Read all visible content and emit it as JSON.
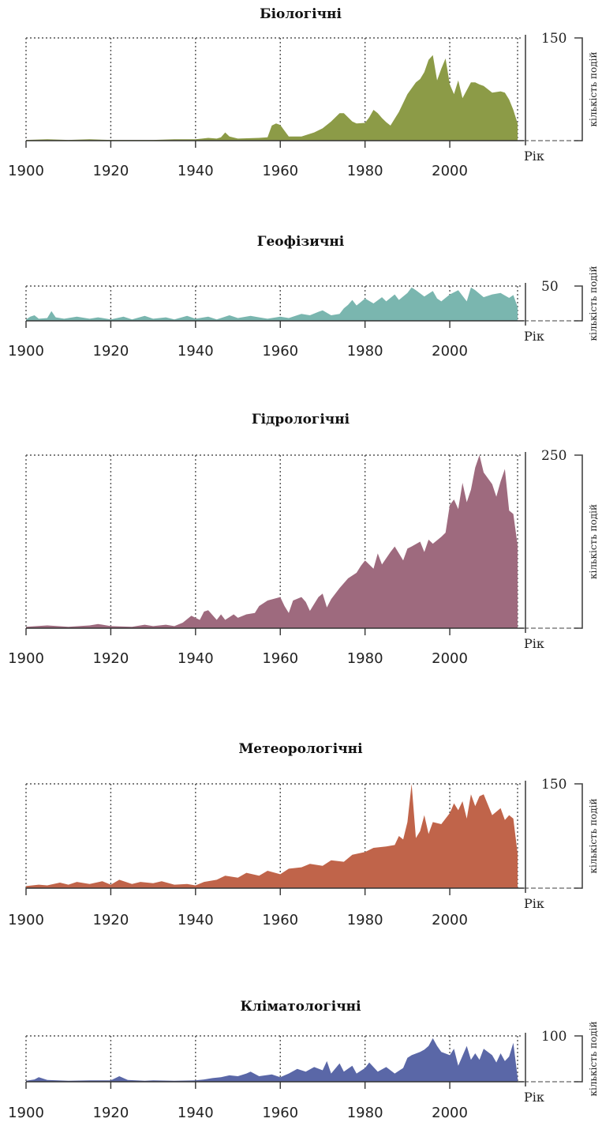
{
  "chart_data": [
    {
      "type": "area",
      "title": "Біологічні",
      "xlabel": "Рік",
      "ylabel": "кількість подій",
      "x_ticks": [
        "1900",
        "1920",
        "1940",
        "1960",
        "1980",
        "2000"
      ],
      "y_max_label": "150",
      "xlim": [
        1900,
        2016
      ],
      "ylim": [
        0,
        150
      ],
      "color": "#8C9B47",
      "x": [
        1900,
        1905,
        1910,
        1915,
        1920,
        1925,
        1930,
        1935,
        1940,
        1943,
        1945,
        1946,
        1947,
        1948,
        1950,
        1955,
        1957,
        1958,
        1959,
        1960,
        1962,
        1965,
        1968,
        1970,
        1972,
        1974,
        1975,
        1977,
        1978,
        1980,
        1981,
        1982,
        1983,
        1984,
        1985,
        1986,
        1988,
        1990,
        1992,
        1993,
        1994,
        1995,
        1996,
        1997,
        1998,
        1999,
        2000,
        2001,
        2002,
        2003,
        2005,
        2006,
        2007,
        2008,
        2009,
        2010,
        2012,
        2013,
        2014,
        2015,
        2016
      ],
      "values": [
        1,
        2,
        1,
        2,
        1,
        1,
        1,
        2,
        2,
        4,
        3,
        5,
        12,
        6,
        3,
        4,
        5,
        22,
        25,
        23,
        6,
        6,
        12,
        18,
        28,
        40,
        40,
        28,
        25,
        26,
        34,
        45,
        40,
        33,
        27,
        22,
        42,
        68,
        85,
        90,
        100,
        118,
        125,
        88,
        105,
        120,
        82,
        68,
        88,
        62,
        85,
        85,
        82,
        80,
        75,
        70,
        72,
        70,
        60,
        45,
        25
      ],
      "grid": true
    },
    {
      "type": "area",
      "title": "Геофізичні",
      "xlabel": "Рік",
      "ylabel": "кількість подій",
      "x_ticks": [
        "1900",
        "1920",
        "1940",
        "1960",
        "1980",
        "2000"
      ],
      "y_max_label": "50",
      "xlim": [
        1900,
        2016
      ],
      "ylim": [
        0,
        50
      ],
      "color": "#7AB6AF",
      "x": [
        1900,
        1901,
        1902,
        1903,
        1905,
        1906,
        1907,
        1909,
        1912,
        1915,
        1917,
        1920,
        1923,
        1925,
        1928,
        1930,
        1933,
        1935,
        1938,
        1940,
        1943,
        1945,
        1948,
        1950,
        1953,
        1955,
        1957,
        1960,
        1962,
        1965,
        1967,
        1969,
        1970,
        1972,
        1974,
        1975,
        1976,
        1977,
        1978,
        1979,
        1980,
        1982,
        1984,
        1985,
        1987,
        1988,
        1990,
        1991,
        1992,
        1994,
        1996,
        1997,
        1998,
        2000,
        2002,
        2004,
        2005,
        2006,
        2008,
        2010,
        2012,
        2014,
        2015,
        2016
      ],
      "values": [
        2,
        6,
        8,
        3,
        4,
        14,
        5,
        3,
        6,
        3,
        5,
        2,
        6,
        2,
        7,
        3,
        5,
        2,
        7,
        3,
        6,
        2,
        8,
        4,
        7,
        5,
        3,
        6,
        4,
        10,
        8,
        13,
        15,
        8,
        10,
        18,
        23,
        30,
        22,
        27,
        32,
        25,
        34,
        28,
        38,
        30,
        40,
        48,
        44,
        35,
        43,
        32,
        28,
        38,
        44,
        28,
        48,
        44,
        34,
        38,
        40,
        33,
        37,
        20
      ],
      "grid": true
    },
    {
      "type": "area",
      "title": "Гідрологічні",
      "xlabel": "Рік",
      "ylabel": "кількість подій",
      "x_ticks": [
        "1900",
        "1920",
        "1940",
        "1960",
        "1980",
        "2000"
      ],
      "y_max_label": "250",
      "xlim": [
        1900,
        2016
      ],
      "ylim": [
        0,
        250
      ],
      "color": "#9E6A7E",
      "x": [
        1900,
        1905,
        1910,
        1915,
        1917,
        1920,
        1925,
        1928,
        1930,
        1933,
        1935,
        1937,
        1939,
        1941,
        1942,
        1943,
        1945,
        1946,
        1947,
        1949,
        1950,
        1952,
        1954,
        1955,
        1957,
        1960,
        1961,
        1962,
        1963,
        1965,
        1966,
        1967,
        1969,
        1970,
        1971,
        1972,
        1974,
        1976,
        1978,
        1979,
        1980,
        1982,
        1983,
        1984,
        1986,
        1987,
        1989,
        1990,
        1991,
        1993,
        1994,
        1995,
        1996,
        1998,
        1999,
        2000,
        2001,
        2002,
        2003,
        2004,
        2005,
        2006,
        2007,
        2008,
        2010,
        2011,
        2012,
        2013,
        2014,
        2015,
        2016
      ],
      "values": [
        2,
        4,
        2,
        4,
        6,
        3,
        2,
        5,
        3,
        5,
        3,
        8,
        18,
        12,
        24,
        26,
        12,
        20,
        12,
        20,
        15,
        20,
        22,
        32,
        40,
        45,
        32,
        22,
        40,
        45,
        38,
        25,
        45,
        50,
        30,
        42,
        58,
        72,
        80,
        90,
        98,
        86,
        108,
        92,
        110,
        118,
        98,
        115,
        118,
        125,
        110,
        128,
        122,
        132,
        138,
        178,
        186,
        172,
        210,
        182,
        200,
        232,
        250,
        225,
        208,
        190,
        212,
        230,
        170,
        165,
        120
      ],
      "grid": true
    },
    {
      "type": "area",
      "title": "Метеорологічні",
      "xlabel": "Рік",
      "ylabel": "кількість подій",
      "x_ticks": [
        "1900",
        "1920",
        "1940",
        "1960",
        "1980",
        "2000"
      ],
      "y_max_label": "150",
      "xlim": [
        1900,
        2016
      ],
      "ylim": [
        0,
        150
      ],
      "color": "#C0644A",
      "x": [
        1900,
        1903,
        1905,
        1908,
        1910,
        1912,
        1915,
        1918,
        1920,
        1922,
        1925,
        1927,
        1930,
        1932,
        1935,
        1938,
        1940,
        1942,
        1945,
        1947,
        1950,
        1952,
        1955,
        1957,
        1960,
        1962,
        1965,
        1967,
        1970,
        1972,
        1975,
        1977,
        1980,
        1982,
        1985,
        1987,
        1988,
        1989,
        1990,
        1991,
        1992,
        1993,
        1994,
        1995,
        1996,
        1998,
        2000,
        2001,
        2002,
        2003,
        2004,
        2005,
        2006,
        2007,
        2008,
        2010,
        2011,
        2012,
        2013,
        2014,
        2015,
        2016
      ],
      "values": [
        3,
        5,
        4,
        8,
        5,
        9,
        6,
        10,
        5,
        12,
        6,
        9,
        7,
        10,
        5,
        6,
        4,
        9,
        12,
        18,
        15,
        22,
        18,
        25,
        20,
        28,
        30,
        35,
        32,
        40,
        38,
        48,
        52,
        58,
        60,
        62,
        75,
        70,
        95,
        150,
        72,
        82,
        105,
        78,
        95,
        92,
        108,
        122,
        112,
        125,
        100,
        135,
        118,
        132,
        135,
        105,
        110,
        115,
        98,
        105,
        100,
        50
      ],
      "grid": true
    },
    {
      "type": "area",
      "title": "Кліматологічні",
      "xlabel": "Рік",
      "ylabel": "кількість подій",
      "x_ticks": [
        "1900",
        "1920",
        "1940",
        "1960",
        "1980",
        "2000"
      ],
      "y_max_label": "100",
      "xlim": [
        1900,
        2016
      ],
      "ylim": [
        0,
        100
      ],
      "color": "#5A67A7",
      "x": [
        1900,
        1902,
        1903,
        1905,
        1910,
        1915,
        1920,
        1922,
        1924,
        1928,
        1930,
        1935,
        1940,
        1942,
        1944,
        1946,
        1948,
        1950,
        1952,
        1953,
        1955,
        1958,
        1960,
        1962,
        1964,
        1966,
        1968,
        1970,
        1971,
        1972,
        1974,
        1975,
        1977,
        1978,
        1980,
        1981,
        1983,
        1985,
        1987,
        1989,
        1990,
        1991,
        1993,
        1994,
        1995,
        1996,
        1997,
        1998,
        2000,
        2001,
        2002,
        2004,
        2005,
        2006,
        2007,
        2008,
        2010,
        2011,
        2012,
        2013,
        2014,
        2015,
        2016
      ],
      "values": [
        2,
        5,
        10,
        4,
        2,
        3,
        3,
        12,
        4,
        2,
        3,
        2,
        3,
        5,
        8,
        10,
        14,
        12,
        18,
        22,
        12,
        16,
        10,
        18,
        28,
        22,
        32,
        25,
        45,
        18,
        40,
        22,
        35,
        18,
        30,
        42,
        22,
        32,
        18,
        30,
        52,
        58,
        65,
        70,
        78,
        95,
        78,
        65,
        58,
        72,
        35,
        78,
        48,
        62,
        48,
        72,
        58,
        42,
        62,
        45,
        55,
        85,
        10
      ],
      "grid": true
    }
  ]
}
